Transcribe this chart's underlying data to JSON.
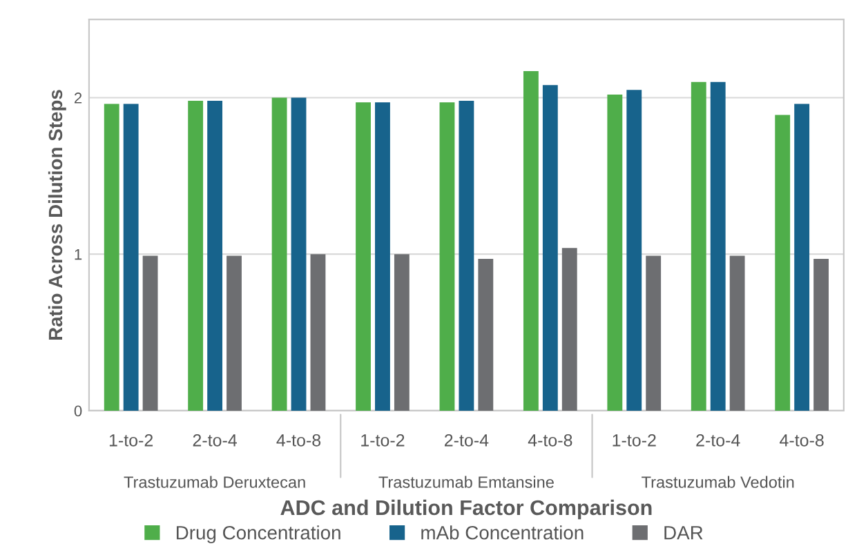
{
  "chart_data": {
    "type": "bar",
    "xlabel": "ADC and Dilution Factor Comparison",
    "ylabel": "Ratio Across Dilution Steps",
    "categories": [
      "1-to-2",
      "2-to-4",
      "4-to-8",
      "1-to-2",
      "2-to-4",
      "4-to-8",
      "1-to-2",
      "2-to-4",
      "4-to-8"
    ],
    "series": [
      {
        "name": "Drug Concentration",
        "color": "#4fae4a",
        "values": [
          1.96,
          1.98,
          2.0,
          1.97,
          1.97,
          2.17,
          2.02,
          2.1,
          1.89
        ]
      },
      {
        "name": "mAb Concentration",
        "color": "#17638c",
        "values": [
          1.96,
          1.98,
          2.0,
          1.97,
          1.98,
          2.08,
          2.05,
          2.1,
          1.96
        ]
      },
      {
        "name": "DAR",
        "color": "#6d6e71",
        "values": [
          0.99,
          0.99,
          1.0,
          1.0,
          0.97,
          1.04,
          0.99,
          0.99,
          0.97
        ]
      }
    ],
    "annotations": [
      "Trastuzumab Deruxtecan",
      "Trastuzumab Emtansine",
      "Trastuzumab Vedotin"
    ],
    "ylim": [
      0,
      2.5
    ],
    "yticks": [
      0,
      1,
      2
    ],
    "grid": "y",
    "legend": "bottom"
  }
}
